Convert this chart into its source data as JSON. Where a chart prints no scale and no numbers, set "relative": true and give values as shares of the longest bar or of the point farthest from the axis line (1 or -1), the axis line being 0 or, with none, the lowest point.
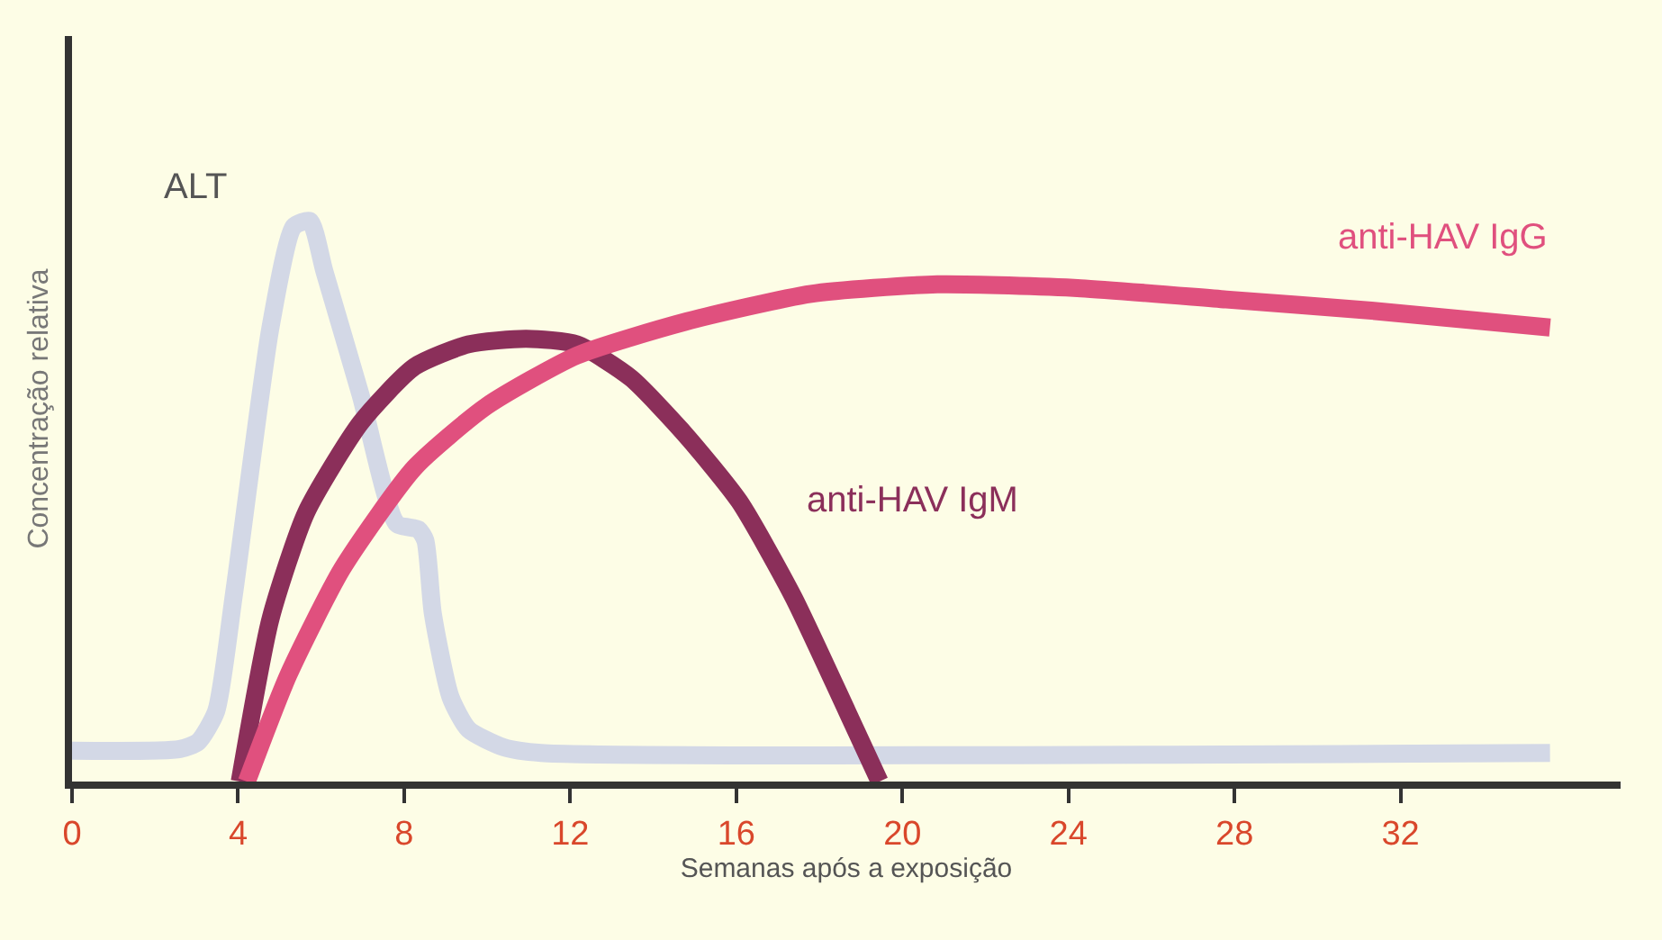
{
  "chart_data": {
    "type": "line",
    "relative": true,
    "xlabel": "Semanas após a exposição",
    "ylabel": "Concentração relativa",
    "xlim": [
      0,
      37.3
    ],
    "xticks": [
      0,
      4,
      8,
      12,
      16,
      20,
      24,
      28,
      32
    ],
    "grid": false,
    "legend": false,
    "marker": "none",
    "line_style": "solid",
    "series": [
      {
        "name": "ALT",
        "color": "#d3d8e6",
        "x": [
          0,
          2.6,
          3.04,
          3.47,
          3.9,
          4.78,
          5.34,
          5.73,
          6.08,
          6.95,
          7.82,
          8.34,
          8.51,
          8.69,
          9.12,
          9.55,
          10.4,
          11.3,
          35.6
        ],
        "values": [
          0.055,
          0.058,
          0.071,
          0.125,
          0.334,
          0.81,
          0.99,
          1.0,
          0.91,
          0.69,
          0.46,
          0.45,
          0.43,
          0.3,
          0.15,
          0.093,
          0.061,
          0.051,
          0.051
        ]
      },
      {
        "name": "anti-HAV IgM",
        "color": "#8b2f5a",
        "x": [
          4.04,
          4.78,
          5.64,
          6.95,
          8.25,
          9.55,
          10.94,
          12.16,
          13.46,
          14.76,
          16.07,
          17.37,
          18.67,
          19.45
        ],
        "values": [
          0,
          0.29,
          0.48,
          0.64,
          0.74,
          0.78,
          0.79,
          0.78,
          0.72,
          0.62,
          0.5,
          0.33,
          0.125,
          0
        ]
      },
      {
        "name": "anti-HAV IgG",
        "color": "#e0507e",
        "x": [
          4.21,
          5.21,
          6.51,
          8.25,
          9.99,
          12.16,
          14.76,
          17.8,
          20.84,
          24.3,
          27.8,
          31.3,
          35.6
        ],
        "values": [
          0,
          0.19,
          0.38,
          0.56,
          0.67,
          0.76,
          0.82,
          0.87,
          0.887,
          0.88,
          0.86,
          0.84,
          0.81
        ]
      }
    ]
  }
}
